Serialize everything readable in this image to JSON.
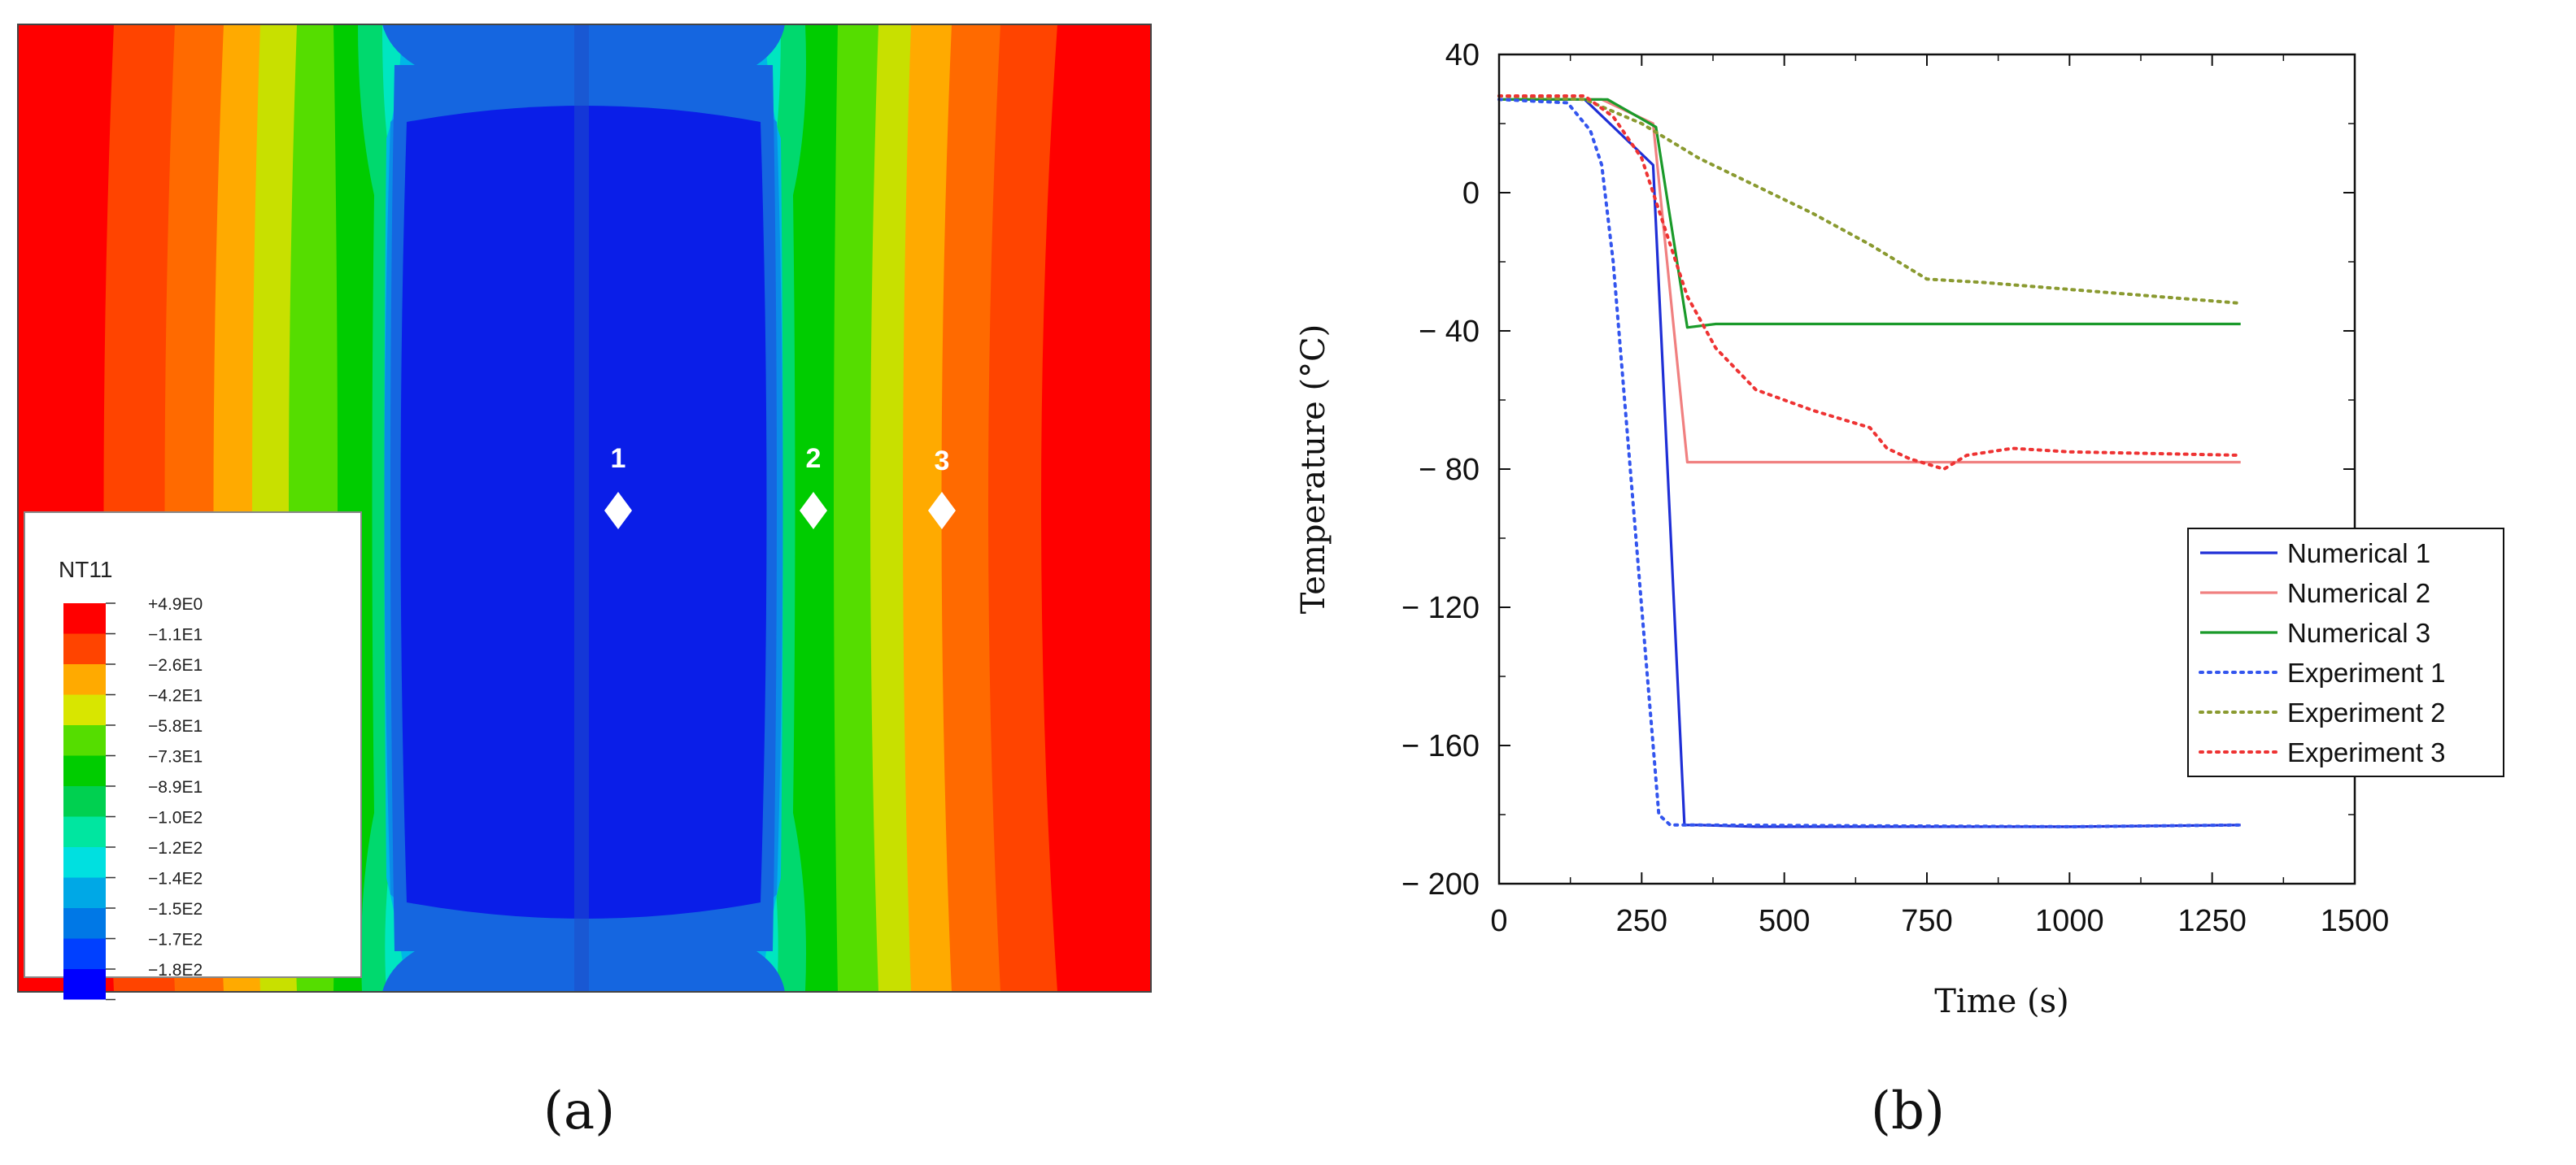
{
  "panel_a": {
    "caption": "(a)",
    "legend_title": "NT11",
    "legend_items": [
      {
        "label": "+4.9E0",
        "color": "#ff0000"
      },
      {
        "label": "−1.1E1",
        "color": "#ff4400"
      },
      {
        "label": "−2.6E1",
        "color": "#ffaa00"
      },
      {
        "label": "−4.2E1",
        "color": "#d8e600"
      },
      {
        "label": "−5.8E1",
        "color": "#55dd00"
      },
      {
        "label": "−7.3E1",
        "color": "#00cc00"
      },
      {
        "label": "−8.9E1",
        "color": "#00d050"
      },
      {
        "label": "−1.0E2",
        "color": "#00e6a0"
      },
      {
        "label": "−1.2E2",
        "color": "#00e0e0"
      },
      {
        "label": "−1.4E2",
        "color": "#00a8e6"
      },
      {
        "label": "−1.5E2",
        "color": "#0078e6"
      },
      {
        "label": "−1.7E2",
        "color": "#0040ff"
      },
      {
        "label": "−1.8E2",
        "color": "#0000ff"
      }
    ],
    "points": [
      "1",
      "2",
      "3"
    ]
  },
  "chart_data": {
    "type": "line",
    "caption": "(b)",
    "title": "",
    "xlabel": "Time (s)",
    "ylabel": "Temperature (°C)",
    "xlim": [
      0,
      1500
    ],
    "ylim": [
      -200,
      40
    ],
    "xticks": [
      0,
      250,
      500,
      750,
      1000,
      1250,
      1500
    ],
    "yticks": [
      40,
      0,
      -40,
      -80,
      -120,
      -160,
      -200
    ],
    "ytick_labels": [
      "40",
      "0",
      "− 40",
      "− 80",
      "− 120",
      "− 160",
      "− 200"
    ],
    "legend_position": "right",
    "series": [
      {
        "name": "Numerical 1",
        "color": "#1f2fd6",
        "style": "solid",
        "x": [
          0,
          150,
          270,
          325,
          350,
          450,
          1000,
          1300
        ],
        "y": [
          27,
          27,
          8,
          -183,
          -183,
          -183.5,
          -183.5,
          -183
        ]
      },
      {
        "name": "Numerical 2",
        "color": "#f08080",
        "style": "solid",
        "x": [
          0,
          180,
          270,
          330,
          400,
          1300
        ],
        "y": [
          27,
          27,
          20,
          -78,
          -78,
          -78
        ]
      },
      {
        "name": "Numerical 3",
        "color": "#1a9a2a",
        "style": "solid",
        "x": [
          0,
          190,
          275,
          330,
          380,
          1300
        ],
        "y": [
          27,
          27,
          19,
          -39,
          -38,
          -38
        ]
      },
      {
        "name": "Experiment 1",
        "color": "#3355ee",
        "style": "dotted",
        "x": [
          0,
          120,
          160,
          180,
          200,
          220,
          240,
          260,
          270,
          280,
          300,
          350,
          1000,
          1300
        ],
        "y": [
          27,
          26,
          18,
          8,
          -20,
          -60,
          -100,
          -140,
          -160,
          -180,
          -183,
          -183,
          -183.5,
          -183
        ]
      },
      {
        "name": "Experiment 2",
        "color": "#8a9a30",
        "style": "dotted",
        "x": [
          0,
          150,
          250,
          350,
          450,
          550,
          650,
          750,
          850,
          1000,
          1150,
          1300
        ],
        "y": [
          28,
          27,
          20,
          10,
          2,
          -6,
          -15,
          -25,
          -26,
          -28,
          -30,
          -32
        ]
      },
      {
        "name": "Experiment 3",
        "color": "#ee3333",
        "style": "dotted",
        "x": [
          0,
          150,
          200,
          250,
          280,
          330,
          380,
          450,
          550,
          650,
          680,
          720,
          780,
          820,
          900,
          1000,
          1300
        ],
        "y": [
          28,
          28,
          22,
          10,
          -5,
          -30,
          -45,
          -57,
          -63,
          -68,
          -74,
          -77,
          -80,
          -76,
          -74,
          -75,
          -76
        ]
      }
    ]
  }
}
